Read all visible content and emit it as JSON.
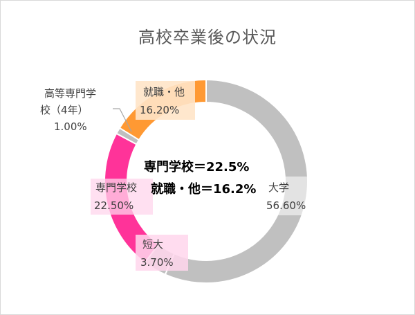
{
  "chart_data": {
    "type": "pie",
    "title": "高校卒業後の状況",
    "categories": [
      "大学",
      "短大",
      "専門学校",
      "高等専門学校（4年）",
      "就職・他"
    ],
    "values": [
      56.6,
      3.7,
      22.5,
      1.0,
      16.2
    ],
    "value_labels": [
      "56.60%",
      "3.70%",
      "22.50%",
      "1.00%",
      "16.20%"
    ],
    "colors": [
      "#c0c0c0",
      "#c0c0c0",
      "#ff3399",
      "#bfbfbf",
      "#ff9933"
    ],
    "label_bg_colors": [
      "#ececec",
      "#ffd6ec",
      "#ffd6ec",
      "#ffffff",
      "#ffe4c8"
    ],
    "center_text": [
      "専門学校＝22.5%",
      "就職・他＝16.2%"
    ],
    "legend": "none",
    "hole": "doughnut"
  },
  "labels": {
    "daigaku": [
      "大学",
      "56.60%"
    ],
    "tandai": [
      "短大",
      "3.70%"
    ],
    "senmon": [
      "専門学校",
      "22.50%"
    ],
    "kosen": [
      "高等専門学",
      "校（4年）",
      "1.00%"
    ],
    "shushoku": [
      "就職・他",
      "16.20%"
    ]
  }
}
